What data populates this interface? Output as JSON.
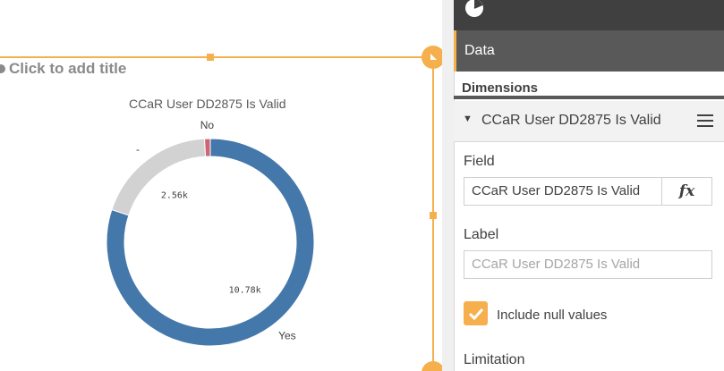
{
  "canvas": {
    "title_placeholder": "Click to add title"
  },
  "chart_data": {
    "type": "pie",
    "donut": true,
    "title": "CCaR User DD2875 Is Valid",
    "categories": [
      "Yes",
      "-",
      "No"
    ],
    "values": [
      10780,
      2560,
      120
    ],
    "value_labels": [
      "10.78k",
      "2.56k",
      ""
    ],
    "colors": [
      "#4477aa",
      "#d2d2d2",
      "#cc6677"
    ]
  },
  "panel": {
    "header_icon": "pie-chart-icon",
    "tab_data": "Data",
    "section_title": "Dimensions",
    "dimension": {
      "name": "CCaR User DD2875 Is Valid",
      "field_label": "Field",
      "field_value": "CCaR User DD2875 Is Valid",
      "fx_label": "fx",
      "label_label": "Label",
      "label_placeholder": "CCaR User DD2875 Is Valid",
      "include_null_label": "Include null values",
      "include_null_checked": true,
      "limitation_label": "Limitation"
    }
  },
  "colors": {
    "accent": "#f5b04d",
    "panel_dark": "#404040",
    "tab_bg": "#595959"
  }
}
